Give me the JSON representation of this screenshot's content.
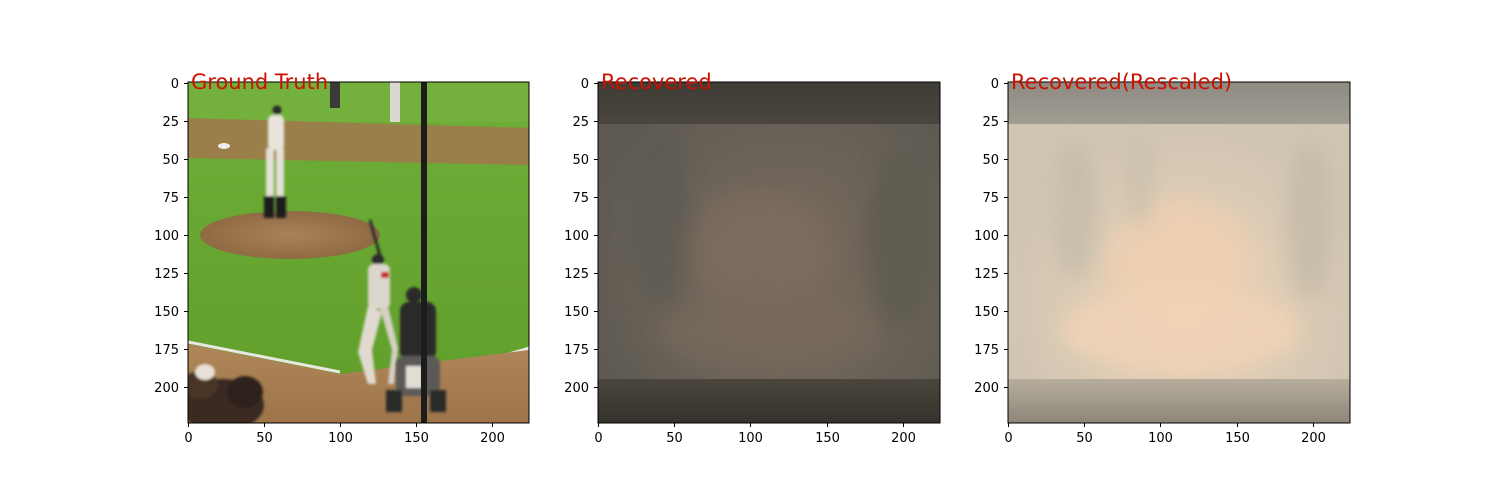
{
  "figure": {
    "title_color": "#cc1100",
    "panels": [
      {
        "title": "Ground Truth",
        "image": "baseball-frame-photo",
        "x_ticks": [
          "0",
          "50",
          "100",
          "150",
          "200"
        ],
        "y_ticks": [
          "0",
          "25",
          "50",
          "75",
          "100",
          "125",
          "150",
          "175",
          "200"
        ]
      },
      {
        "title": "Recovered",
        "image": "recovered-blurred-frame",
        "x_ticks": [
          "0",
          "50",
          "100",
          "150",
          "200"
        ],
        "y_ticks": [
          "0",
          "25",
          "50",
          "75",
          "100",
          "125",
          "150",
          "175",
          "200"
        ]
      },
      {
        "title": "Recovered(Rescaled)",
        "image": "rescaled-recovered-frame",
        "x_ticks": [
          "0",
          "50",
          "100",
          "150",
          "200"
        ],
        "y_ticks": [
          "0",
          "25",
          "50",
          "75",
          "100",
          "125",
          "150",
          "175",
          "200"
        ]
      }
    ]
  }
}
